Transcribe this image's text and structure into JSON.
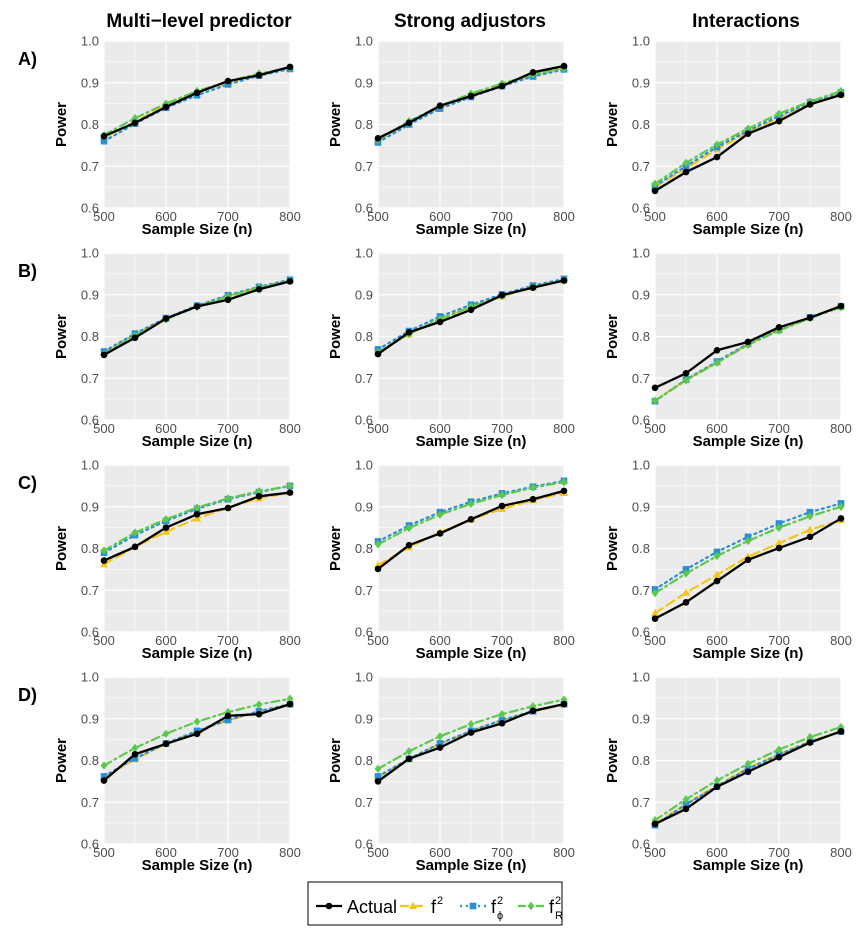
{
  "figure": {
    "column_titles": [
      "Multi−level predictor",
      "Strong adjustors",
      "Interactions"
    ],
    "row_labels": [
      "A)",
      "B)",
      "C)",
      "D)"
    ]
  },
  "colors": {
    "Actual": "#000000",
    "f2": "#F5C518",
    "f2_phi": "#2B8FD6",
    "f2_R": "#5CC94C",
    "panel_bg": "#EBEBEB",
    "grid": "#FFFFFF"
  },
  "legend": {
    "entries": [
      {
        "key": "Actual",
        "label": "Actual",
        "sup": "",
        "sub": ""
      },
      {
        "key": "f2",
        "label": "f",
        "sup": "2",
        "sub": ""
      },
      {
        "key": "f2_phi",
        "label": "f",
        "sup": "2",
        "sub": "ϕ"
      },
      {
        "key": "f2_R",
        "label": "f",
        "sup": "2",
        "sub": "R"
      }
    ]
  },
  "chart_data": [
    {
      "id": "A1",
      "row": "A)",
      "column": "Multi−level predictor",
      "type": "line",
      "xlabel": "Sample Size (n)",
      "ylabel": "Power",
      "xlim": [
        500,
        800
      ],
      "ylim": [
        0.6,
        1.0
      ],
      "xticks": [
        500,
        600,
        700,
        800
      ],
      "yticks": [
        0.6,
        0.7,
        0.8,
        0.9,
        1.0
      ],
      "x": [
        500,
        550,
        600,
        650,
        700,
        750,
        800
      ],
      "series": [
        {
          "name": "Actual",
          "values": [
            0.772,
            0.804,
            0.842,
            0.876,
            0.904,
            0.918,
            0.938
          ]
        },
        {
          "name": "f2",
          "values": [
            0.768,
            0.806,
            0.846,
            0.878,
            0.9,
            0.921,
            0.936
          ]
        },
        {
          "name": "f2_phi",
          "values": [
            0.76,
            0.802,
            0.84,
            0.87,
            0.896,
            0.917,
            0.933
          ]
        },
        {
          "name": "f2_R",
          "values": [
            0.775,
            0.815,
            0.85,
            0.88,
            0.903,
            0.922,
            0.936
          ]
        }
      ]
    },
    {
      "id": "A2",
      "row": "A)",
      "column": "Strong adjustors",
      "type": "line",
      "xlabel": "Sample Size (n)",
      "ylabel": "Power",
      "xlim": [
        500,
        800
      ],
      "ylim": [
        0.6,
        1.0
      ],
      "xticks": [
        500,
        600,
        700,
        800
      ],
      "yticks": [
        0.6,
        0.7,
        0.8,
        0.9,
        1.0
      ],
      "x": [
        500,
        550,
        600,
        650,
        700,
        750,
        800
      ],
      "series": [
        {
          "name": "Actual",
          "values": [
            0.767,
            0.804,
            0.845,
            0.868,
            0.892,
            0.925,
            0.94
          ]
        },
        {
          "name": "f2",
          "values": [
            0.762,
            0.806,
            0.84,
            0.87,
            0.895,
            0.918,
            0.935
          ]
        },
        {
          "name": "f2_phi",
          "values": [
            0.757,
            0.8,
            0.838,
            0.866,
            0.892,
            0.915,
            0.932
          ]
        },
        {
          "name": "f2_R",
          "values": [
            0.763,
            0.808,
            0.844,
            0.874,
            0.898,
            0.92,
            0.935
          ]
        }
      ]
    },
    {
      "id": "A3",
      "row": "A)",
      "column": "Interactions",
      "type": "line",
      "xlabel": "Sample Size (n)",
      "ylabel": "Power",
      "xlim": [
        500,
        800
      ],
      "ylim": [
        0.6,
        1.0
      ],
      "xticks": [
        500,
        600,
        700,
        800
      ],
      "yticks": [
        0.6,
        0.7,
        0.8,
        0.9,
        1.0
      ],
      "x": [
        500,
        550,
        600,
        650,
        700,
        750,
        800
      ],
      "series": [
        {
          "name": "Actual",
          "values": [
            0.641,
            0.686,
            0.722,
            0.778,
            0.808,
            0.848,
            0.871
          ]
        },
        {
          "name": "f2",
          "values": [
            0.65,
            0.695,
            0.74,
            0.782,
            0.815,
            0.85,
            0.872
          ]
        },
        {
          "name": "f2_phi",
          "values": [
            0.653,
            0.7,
            0.746,
            0.785,
            0.82,
            0.853,
            0.877
          ]
        },
        {
          "name": "f2_R",
          "values": [
            0.658,
            0.708,
            0.752,
            0.79,
            0.826,
            0.855,
            0.88
          ]
        }
      ]
    },
    {
      "id": "B1",
      "row": "B)",
      "column": "Multi−level predictor",
      "type": "line",
      "xlabel": "Sample Size (n)",
      "ylabel": "Power",
      "xlim": [
        500,
        800
      ],
      "ylim": [
        0.6,
        1.0
      ],
      "xticks": [
        500,
        600,
        700,
        800
      ],
      "yticks": [
        0.6,
        0.7,
        0.8,
        0.9,
        1.0
      ],
      "x": [
        500,
        550,
        600,
        650,
        700,
        750,
        800
      ],
      "series": [
        {
          "name": "Actual",
          "values": [
            0.756,
            0.797,
            0.843,
            0.872,
            0.888,
            0.913,
            0.932
          ]
        },
        {
          "name": "f2",
          "values": [
            0.762,
            0.805,
            0.843,
            0.873,
            0.897,
            0.918,
            0.934
          ]
        },
        {
          "name": "f2_phi",
          "values": [
            0.764,
            0.807,
            0.844,
            0.874,
            0.899,
            0.919,
            0.936
          ]
        },
        {
          "name": "f2_R",
          "values": [
            0.758,
            0.802,
            0.841,
            0.871,
            0.896,
            0.917,
            0.933
          ]
        }
      ]
    },
    {
      "id": "B2",
      "row": "B)",
      "column": "Strong adjustors",
      "type": "line",
      "xlabel": "Sample Size (n)",
      "ylabel": "Power",
      "xlim": [
        500,
        800
      ],
      "ylim": [
        0.6,
        1.0
      ],
      "xticks": [
        500,
        600,
        700,
        800
      ],
      "yticks": [
        0.6,
        0.7,
        0.8,
        0.9,
        1.0
      ],
      "x": [
        500,
        550,
        600,
        650,
        700,
        750,
        800
      ],
      "series": [
        {
          "name": "Actual",
          "values": [
            0.758,
            0.81,
            0.835,
            0.864,
            0.899,
            0.917,
            0.934
          ]
        },
        {
          "name": "f2",
          "values": [
            0.762,
            0.806,
            0.84,
            0.87,
            0.896,
            0.918,
            0.934
          ]
        },
        {
          "name": "f2_phi",
          "values": [
            0.769,
            0.813,
            0.848,
            0.876,
            0.901,
            0.922,
            0.938
          ]
        },
        {
          "name": "f2_R",
          "values": [
            0.762,
            0.806,
            0.842,
            0.871,
            0.897,
            0.919,
            0.935
          ]
        }
      ]
    },
    {
      "id": "B3",
      "row": "B)",
      "column": "Interactions",
      "type": "line",
      "xlabel": "Sample Size (n)",
      "ylabel": "Power",
      "xlim": [
        500,
        800
      ],
      "ylim": [
        0.6,
        1.0
      ],
      "xticks": [
        500,
        600,
        700,
        800
      ],
      "yticks": [
        0.6,
        0.7,
        0.8,
        0.9,
        1.0
      ],
      "x": [
        500,
        550,
        600,
        650,
        700,
        750,
        800
      ],
      "series": [
        {
          "name": "Actual",
          "values": [
            0.677,
            0.712,
            0.767,
            0.787,
            0.822,
            0.845,
            0.873
          ]
        },
        {
          "name": "f2",
          "values": [
            0.647,
            0.696,
            0.738,
            0.781,
            0.815,
            0.845,
            0.871
          ]
        },
        {
          "name": "f2_phi",
          "values": [
            0.645,
            0.697,
            0.74,
            0.783,
            0.816,
            0.846,
            0.872
          ]
        },
        {
          "name": "f2_R",
          "values": [
            0.646,
            0.695,
            0.737,
            0.78,
            0.814,
            0.844,
            0.87
          ]
        }
      ]
    },
    {
      "id": "C1",
      "row": "C)",
      "column": "Multi−level predictor",
      "type": "line",
      "xlabel": "Sample Size (n)",
      "ylabel": "Power",
      "xlim": [
        500,
        800
      ],
      "ylim": [
        0.6,
        1.0
      ],
      "xticks": [
        500,
        600,
        700,
        800
      ],
      "yticks": [
        0.6,
        0.7,
        0.8,
        0.9,
        1.0
      ],
      "x": [
        500,
        550,
        600,
        650,
        700,
        750,
        800
      ],
      "series": [
        {
          "name": "Actual",
          "values": [
            0.771,
            0.804,
            0.85,
            0.882,
            0.897,
            0.925,
            0.934
          ]
        },
        {
          "name": "f2",
          "values": [
            0.762,
            0.804,
            0.84,
            0.872,
            0.898,
            0.92,
            0.934
          ]
        },
        {
          "name": "f2_phi",
          "values": [
            0.79,
            0.832,
            0.866,
            0.895,
            0.918,
            0.935,
            0.95
          ]
        },
        {
          "name": "f2_R",
          "values": [
            0.795,
            0.838,
            0.87,
            0.898,
            0.92,
            0.937,
            0.95
          ]
        }
      ]
    },
    {
      "id": "C2",
      "row": "C)",
      "column": "Strong adjustors",
      "type": "line",
      "xlabel": "Sample Size (n)",
      "ylabel": "Power",
      "xlim": [
        500,
        800
      ],
      "ylim": [
        0.6,
        1.0
      ],
      "xticks": [
        500,
        600,
        700,
        800
      ],
      "yticks": [
        0.6,
        0.7,
        0.8,
        0.9,
        1.0
      ],
      "x": [
        500,
        550,
        600,
        650,
        700,
        750,
        800
      ],
      "series": [
        {
          "name": "Actual",
          "values": [
            0.751,
            0.808,
            0.836,
            0.87,
            0.902,
            0.918,
            0.938
          ]
        },
        {
          "name": "f2",
          "values": [
            0.76,
            0.803,
            0.839,
            0.869,
            0.895,
            0.916,
            0.933
          ]
        },
        {
          "name": "f2_phi",
          "values": [
            0.817,
            0.855,
            0.887,
            0.912,
            0.932,
            0.948,
            0.962
          ]
        },
        {
          "name": "f2_R",
          "values": [
            0.81,
            0.849,
            0.881,
            0.907,
            0.928,
            0.946,
            0.959
          ]
        }
      ]
    },
    {
      "id": "C3",
      "row": "C)",
      "column": "Interactions",
      "type": "line",
      "xlabel": "Sample Size (n)",
      "ylabel": "Power",
      "xlim": [
        500,
        800
      ],
      "ylim": [
        0.6,
        1.0
      ],
      "xticks": [
        500,
        600,
        700,
        800
      ],
      "yticks": [
        0.6,
        0.7,
        0.8,
        0.9,
        1.0
      ],
      "x": [
        500,
        550,
        600,
        650,
        700,
        750,
        800
      ],
      "series": [
        {
          "name": "Actual",
          "values": [
            0.632,
            0.671,
            0.722,
            0.773,
            0.801,
            0.828,
            0.872
          ]
        },
        {
          "name": "f2",
          "values": [
            0.645,
            0.694,
            0.737,
            0.78,
            0.813,
            0.845,
            0.868
          ]
        },
        {
          "name": "f2_phi",
          "values": [
            0.702,
            0.75,
            0.792,
            0.828,
            0.86,
            0.887,
            0.908
          ]
        },
        {
          "name": "f2_R",
          "values": [
            0.693,
            0.74,
            0.782,
            0.818,
            0.85,
            0.877,
            0.9
          ]
        }
      ]
    },
    {
      "id": "D1",
      "row": "D)",
      "column": "Multi−level predictor",
      "type": "line",
      "xlabel": "Sample Size (n)",
      "ylabel": "Power",
      "xlim": [
        500,
        800
      ],
      "ylim": [
        0.6,
        1.0
      ],
      "xticks": [
        500,
        600,
        700,
        800
      ],
      "yticks": [
        0.6,
        0.7,
        0.8,
        0.9,
        1.0
      ],
      "x": [
        500,
        550,
        600,
        650,
        700,
        750,
        800
      ],
      "series": [
        {
          "name": "Actual",
          "values": [
            0.752,
            0.815,
            0.84,
            0.864,
            0.907,
            0.911,
            0.935
          ]
        },
        {
          "name": "f2",
          "values": [
            0.76,
            0.803,
            0.84,
            0.87,
            0.896,
            0.917,
            0.934
          ]
        },
        {
          "name": "f2_phi",
          "values": [
            0.762,
            0.805,
            0.841,
            0.871,
            0.897,
            0.918,
            0.935
          ]
        },
        {
          "name": "f2_R",
          "values": [
            0.788,
            0.83,
            0.864,
            0.893,
            0.916,
            0.934,
            0.948
          ]
        }
      ]
    },
    {
      "id": "D2",
      "row": "D)",
      "column": "Strong adjustors",
      "type": "line",
      "xlabel": "Sample Size (n)",
      "ylabel": "Power",
      "xlim": [
        500,
        800
      ],
      "ylim": [
        0.6,
        1.0
      ],
      "xticks": [
        500,
        600,
        700,
        800
      ],
      "yticks": [
        0.6,
        0.7,
        0.8,
        0.9,
        1.0
      ],
      "x": [
        500,
        550,
        600,
        650,
        700,
        750,
        800
      ],
      "series": [
        {
          "name": "Actual",
          "values": [
            0.75,
            0.804,
            0.831,
            0.867,
            0.889,
            0.919,
            0.935
          ]
        },
        {
          "name": "f2",
          "values": [
            0.76,
            0.803,
            0.84,
            0.87,
            0.896,
            0.917,
            0.934
          ]
        },
        {
          "name": "f2_phi",
          "values": [
            0.762,
            0.804,
            0.841,
            0.871,
            0.897,
            0.918,
            0.935
          ]
        },
        {
          "name": "f2_R",
          "values": [
            0.78,
            0.822,
            0.858,
            0.887,
            0.911,
            0.93,
            0.946
          ]
        }
      ]
    },
    {
      "id": "D3",
      "row": "D)",
      "column": "Interactions",
      "type": "line",
      "xlabel": "Sample Size (n)",
      "ylabel": "Power",
      "xlim": [
        500,
        800
      ],
      "ylim": [
        0.6,
        1.0
      ],
      "xticks": [
        500,
        600,
        700,
        800
      ],
      "yticks": [
        0.6,
        0.7,
        0.8,
        0.9,
        1.0
      ],
      "x": [
        500,
        550,
        600,
        650,
        700,
        750,
        800
      ],
      "series": [
        {
          "name": "Actual",
          "values": [
            0.648,
            0.684,
            0.737,
            0.773,
            0.808,
            0.843,
            0.87
          ]
        },
        {
          "name": "f2",
          "values": [
            0.648,
            0.696,
            0.74,
            0.782,
            0.815,
            0.846,
            0.87
          ]
        },
        {
          "name": "f2_phi",
          "values": [
            0.645,
            0.695,
            0.738,
            0.78,
            0.814,
            0.845,
            0.869
          ]
        },
        {
          "name": "f2_R",
          "values": [
            0.657,
            0.707,
            0.752,
            0.792,
            0.826,
            0.856,
            0.88
          ]
        }
      ]
    }
  ]
}
